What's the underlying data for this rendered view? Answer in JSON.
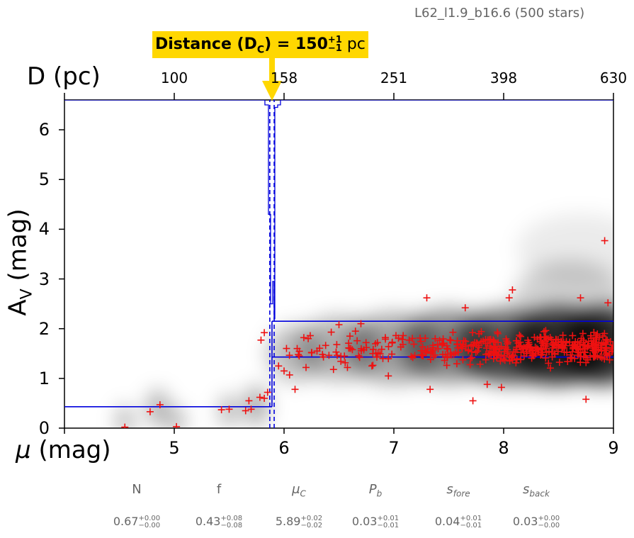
{
  "run_label": "L62_l1.9_b16.6 (500 stars)",
  "distance_annotation": {
    "prefix": "Distance (D",
    "subscript": "C",
    "mid": ") = 150",
    "plus": "+1",
    "minus": "−1",
    "unit": " pc"
  },
  "axes": {
    "top_title": "D (pc)",
    "bottom_title_symbol": "μ",
    "bottom_title_rest": " (mag)",
    "left_title_main": "A",
    "left_title_sub": "V",
    "left_title_rest": " (mag)"
  },
  "params": [
    {
      "name": "N",
      "sym": "N",
      "sub": "",
      "value": "0.67",
      "plus": "+0.00",
      "minus": "−0.00",
      "italic": false
    },
    {
      "name": "f",
      "sym": "f",
      "sub": "",
      "value": "0.43",
      "plus": "+0.08",
      "minus": "−0.08",
      "italic": false
    },
    {
      "name": "mu_c",
      "sym": "μ",
      "sub": "C",
      "value": "5.89",
      "plus": "+0.02",
      "minus": "−0.02",
      "italic": true
    },
    {
      "name": "p_b",
      "sym": "P",
      "sub": "b",
      "value": "0.03",
      "plus": "+0.01",
      "minus": "−0.01",
      "italic": true
    },
    {
      "name": "s_fore",
      "sym": "s",
      "sub": "fore",
      "value": "0.04",
      "plus": "+0.01",
      "minus": "−0.01",
      "italic": true
    },
    {
      "name": "s_back",
      "sym": "s",
      "sub": "back",
      "value": "0.03",
      "plus": "+0.00",
      "minus": "−0.00",
      "italic": true
    }
  ],
  "colors": {
    "annotation_bg": "#ffd700",
    "arrow": "#ffd700",
    "model_line": "#0000dd",
    "stars": "#ee1111",
    "density": "#000000"
  },
  "chart_data": {
    "type": "scatter",
    "xlabel": "μ (mag)",
    "ylabel": "A_V (mag)",
    "x2label": "D (pc)",
    "xlim": [
      4,
      9
    ],
    "ylim": [
      0,
      6.6
    ],
    "x_ticks": [
      5,
      6,
      7,
      8,
      9
    ],
    "y_ticks": [
      0,
      1,
      2,
      3,
      4,
      5,
      6
    ],
    "x2_ticks": [
      {
        "at": 5.0,
        "label": "100"
      },
      {
        "at": 6.0,
        "label": "158"
      },
      {
        "at": 7.0,
        "label": "251"
      },
      {
        "at": 8.0,
        "label": "398"
      },
      {
        "at": 9.0,
        "label": "630"
      }
    ],
    "cloud_distance_mu": 5.89,
    "cloud_distance_mu_err": [
      5.87,
      5.91
    ],
    "foreground_av": 0.43,
    "background_av": 1.43,
    "background_av_upper": 2.15,
    "stars_sparse": [
      [
        4.55,
        0.02
      ],
      [
        4.78,
        0.33
      ],
      [
        4.87,
        0.47
      ],
      [
        5.02,
        0.03
      ],
      [
        5.43,
        0.37
      ],
      [
        5.5,
        0.38
      ],
      [
        5.65,
        0.35
      ],
      [
        5.7,
        0.38
      ],
      [
        5.78,
        0.62
      ],
      [
        5.82,
        0.6
      ],
      [
        5.79,
        1.77
      ],
      [
        5.82,
        1.92
      ],
      [
        5.85,
        0.72
      ],
      [
        5.68,
        0.55
      ],
      [
        5.95,
        1.25
      ],
      [
        6.0,
        1.15
      ],
      [
        6.05,
        1.07
      ],
      [
        6.1,
        0.78
      ],
      [
        6.13,
        1.48
      ],
      [
        6.18,
        1.82
      ],
      [
        6.2,
        1.22
      ],
      [
        6.22,
        1.8
      ],
      [
        6.3,
        1.55
      ],
      [
        6.35,
        1.48
      ],
      [
        6.45,
        1.18
      ],
      [
        6.48,
        1.68
      ],
      [
        6.5,
        2.08
      ],
      [
        6.55,
        1.45
      ],
      [
        6.6,
        1.85
      ],
      [
        6.65,
        1.95
      ],
      [
        6.7,
        2.1
      ],
      [
        6.75,
        1.62
      ],
      [
        6.8,
        1.25
      ],
      [
        6.85,
        1.72
      ],
      [
        6.9,
        1.4
      ],
      [
        6.95,
        1.05
      ],
      [
        7.3,
        2.62
      ],
      [
        7.33,
        0.78
      ],
      [
        7.65,
        2.42
      ],
      [
        7.72,
        0.55
      ],
      [
        7.85,
        0.88
      ],
      [
        7.98,
        0.82
      ],
      [
        8.05,
        2.62
      ],
      [
        8.08,
        2.78
      ],
      [
        8.7,
        2.62
      ],
      [
        8.75,
        0.58
      ],
      [
        8.92,
        3.77
      ],
      [
        8.95,
        2.52
      ]
    ],
    "dense_cluster": {
      "x_range": [
        6.0,
        9.0
      ],
      "y_center": 1.6,
      "y_spread": 0.35,
      "count": 420
    }
  }
}
